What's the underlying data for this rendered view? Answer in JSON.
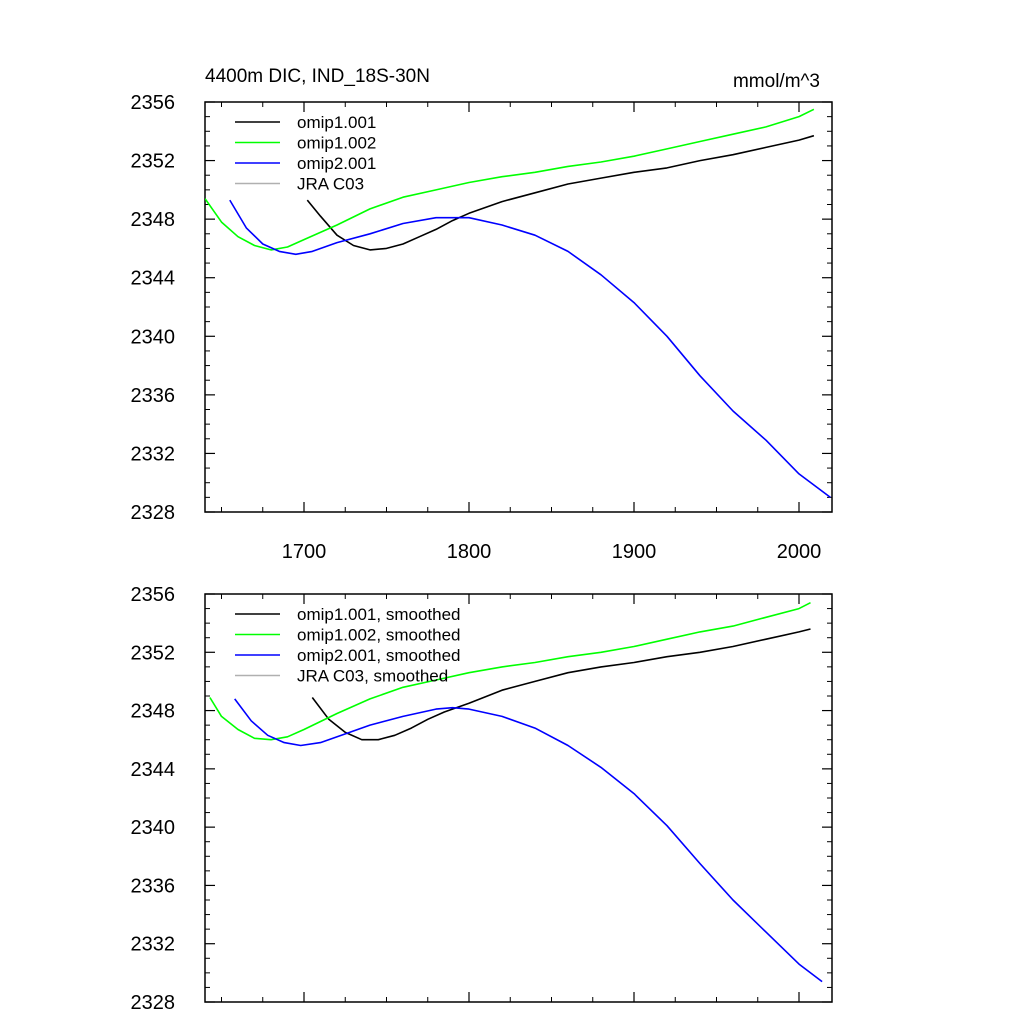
{
  "chart_data": [
    {
      "type": "line",
      "title": "4400m DIC, IND_18S-30N",
      "units_label": "mmol/m^3",
      "xlabel": "",
      "ylabel": "",
      "xlim": [
        1640,
        2020
      ],
      "ylim": [
        2328,
        2356
      ],
      "xticks": [
        1700,
        1800,
        1900,
        2000
      ],
      "xtick_labels": [
        "1700",
        "1800",
        "1900",
        "2000"
      ],
      "yticks": [
        2328,
        2332,
        2336,
        2340,
        2344,
        2348,
        2352,
        2356
      ],
      "ytick_labels": [
        "2328",
        "2332",
        "2336",
        "2340",
        "2344",
        "2348",
        "2352",
        "2356"
      ],
      "legend_position": "top-left",
      "series": [
        {
          "name": "omip1.001",
          "color": "#000000",
          "x": [
            1702,
            1710,
            1720,
            1730,
            1740,
            1750,
            1760,
            1770,
            1780,
            1790,
            1800,
            1820,
            1840,
            1860,
            1880,
            1900,
            1920,
            1940,
            1960,
            1980,
            2000,
            2009
          ],
          "y": [
            2349.3,
            2348.2,
            2346.9,
            2346.2,
            2345.9,
            2346.0,
            2346.3,
            2346.8,
            2347.3,
            2347.9,
            2348.4,
            2349.2,
            2349.8,
            2350.4,
            2350.8,
            2351.2,
            2351.5,
            2352.0,
            2352.4,
            2352.9,
            2353.4,
            2353.7
          ]
        },
        {
          "name": "omip1.002",
          "color": "#00ff00",
          "x": [
            1640,
            1650,
            1660,
            1670,
            1680,
            1690,
            1700,
            1720,
            1740,
            1760,
            1780,
            1800,
            1820,
            1840,
            1860,
            1880,
            1900,
            1920,
            1940,
            1960,
            1980,
            2000,
            2009
          ],
          "y": [
            2349.4,
            2347.8,
            2346.8,
            2346.2,
            2345.9,
            2346.1,
            2346.6,
            2347.6,
            2348.7,
            2349.5,
            2350.0,
            2350.5,
            2350.9,
            2351.2,
            2351.6,
            2351.9,
            2352.3,
            2352.8,
            2353.3,
            2353.8,
            2354.3,
            2355.0,
            2355.5
          ]
        },
        {
          "name": "omip2.001",
          "color": "#0000ff",
          "x": [
            1655,
            1665,
            1675,
            1685,
            1695,
            1705,
            1720,
            1740,
            1760,
            1780,
            1800,
            1820,
            1840,
            1860,
            1880,
            1900,
            1920,
            1940,
            1960,
            1980,
            2000,
            2019
          ],
          "y": [
            2349.3,
            2347.4,
            2346.3,
            2345.8,
            2345.6,
            2345.8,
            2346.4,
            2347.0,
            2347.7,
            2348.1,
            2348.1,
            2347.6,
            2346.9,
            2345.8,
            2344.2,
            2342.3,
            2340.0,
            2337.3,
            2334.9,
            2332.9,
            2330.6,
            2329.0
          ]
        },
        {
          "name": "JRA C03",
          "color": "#b0b0b0",
          "x": [],
          "y": []
        }
      ]
    },
    {
      "type": "line",
      "title": "",
      "units_label": "",
      "xlabel": "",
      "ylabel": "",
      "xlim": [
        1640,
        2020
      ],
      "ylim": [
        2328,
        2356
      ],
      "xticks": [
        1700,
        1800,
        1900,
        2000
      ],
      "xtick_labels": [],
      "yticks": [
        2328,
        2332,
        2336,
        2340,
        2344,
        2348,
        2352,
        2356
      ],
      "ytick_labels": [
        "2328",
        "2332",
        "2336",
        "2340",
        "2344",
        "2348",
        "2352",
        "2356"
      ],
      "legend_position": "top-left",
      "series": [
        {
          "name": "omip1.001, smoothed",
          "color": "#000000",
          "x": [
            1705,
            1715,
            1725,
            1735,
            1745,
            1755,
            1765,
            1775,
            1785,
            1800,
            1820,
            1840,
            1860,
            1880,
            1900,
            1920,
            1940,
            1960,
            1980,
            2000,
            2007
          ],
          "y": [
            2348.9,
            2347.4,
            2346.5,
            2346.0,
            2346.0,
            2346.3,
            2346.8,
            2347.4,
            2347.9,
            2348.5,
            2349.4,
            2350.0,
            2350.6,
            2351.0,
            2351.3,
            2351.7,
            2352.0,
            2352.4,
            2352.9,
            2353.4,
            2353.6
          ]
        },
        {
          "name": "omip1.002, smoothed",
          "color": "#00ff00",
          "x": [
            1643,
            1650,
            1660,
            1670,
            1680,
            1690,
            1700,
            1720,
            1740,
            1760,
            1780,
            1800,
            1820,
            1840,
            1860,
            1880,
            1900,
            1920,
            1940,
            1960,
            1980,
            2000,
            2007
          ],
          "y": [
            2348.9,
            2347.6,
            2346.7,
            2346.1,
            2346.0,
            2346.2,
            2346.7,
            2347.8,
            2348.8,
            2349.6,
            2350.1,
            2350.6,
            2351.0,
            2351.3,
            2351.7,
            2352.0,
            2352.4,
            2352.9,
            2353.4,
            2353.8,
            2354.4,
            2355.0,
            2355.4
          ]
        },
        {
          "name": "omip2.001, smoothed",
          "color": "#0000ff",
          "x": [
            1658,
            1668,
            1678,
            1688,
            1698,
            1710,
            1725,
            1740,
            1760,
            1780,
            1790,
            1800,
            1820,
            1840,
            1860,
            1880,
            1900,
            1920,
            1940,
            1960,
            1980,
            2000,
            2014
          ],
          "y": [
            2348.8,
            2347.3,
            2346.3,
            2345.8,
            2345.6,
            2345.8,
            2346.4,
            2347.0,
            2347.6,
            2348.1,
            2348.2,
            2348.1,
            2347.6,
            2346.8,
            2345.6,
            2344.1,
            2342.3,
            2340.1,
            2337.5,
            2335.0,
            2332.8,
            2330.6,
            2329.4
          ]
        },
        {
          "name": "JRA C03, smoothed",
          "color": "#b0b0b0",
          "x": [],
          "y": []
        }
      ]
    }
  ]
}
